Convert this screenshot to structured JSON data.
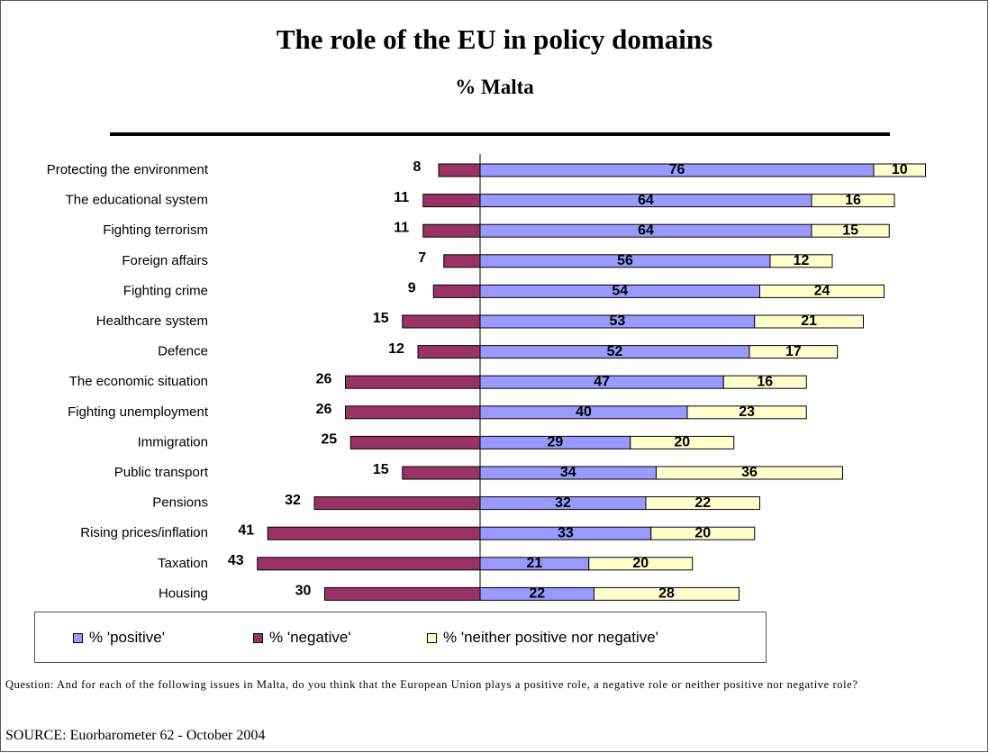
{
  "title": "The role of the EU in policy domains",
  "subtitle": "% Malta",
  "legend": {
    "positive": "% 'positive'",
    "negative": "% 'negative'",
    "neither": "% 'neither positive nor negative'"
  },
  "question": "Question: And for each of the following issues in Malta, do you think that the European Union plays a positive role, a negative role or neither positive nor negative role?",
  "source": "SOURCE: Euorbarometer 62 - October 2004",
  "colors": {
    "positive": "#9999FF",
    "negative": "#993366",
    "neither": "#FFFFCC",
    "outline": "#000000"
  },
  "chart_data": {
    "type": "bar",
    "orientation": "horizontal-diverging",
    "categories": [
      "Protecting the environment",
      "The educational system",
      "Fighting terrorism",
      "Foreign affairs",
      "Fighting crime",
      "Healthcare system",
      "Defence",
      "The economic situation",
      "Fighting unemployment",
      "Immigration",
      "Public transport",
      "Pensions",
      "Rising prices/inflation",
      "Taxation",
      "Housing"
    ],
    "series": [
      {
        "name": "% 'positive'",
        "values": [
          76,
          64,
          64,
          56,
          54,
          53,
          52,
          47,
          40,
          29,
          34,
          32,
          33,
          21,
          22
        ]
      },
      {
        "name": "% 'negative'",
        "values": [
          8,
          11,
          11,
          7,
          9,
          15,
          12,
          26,
          26,
          25,
          15,
          32,
          41,
          43,
          30
        ]
      },
      {
        "name": "% 'neither positive nor negative'",
        "values": [
          10,
          16,
          15,
          12,
          24,
          21,
          17,
          16,
          23,
          20,
          36,
          22,
          20,
          20,
          28
        ]
      }
    ],
    "legend_position": "bottom",
    "grid": false
  }
}
